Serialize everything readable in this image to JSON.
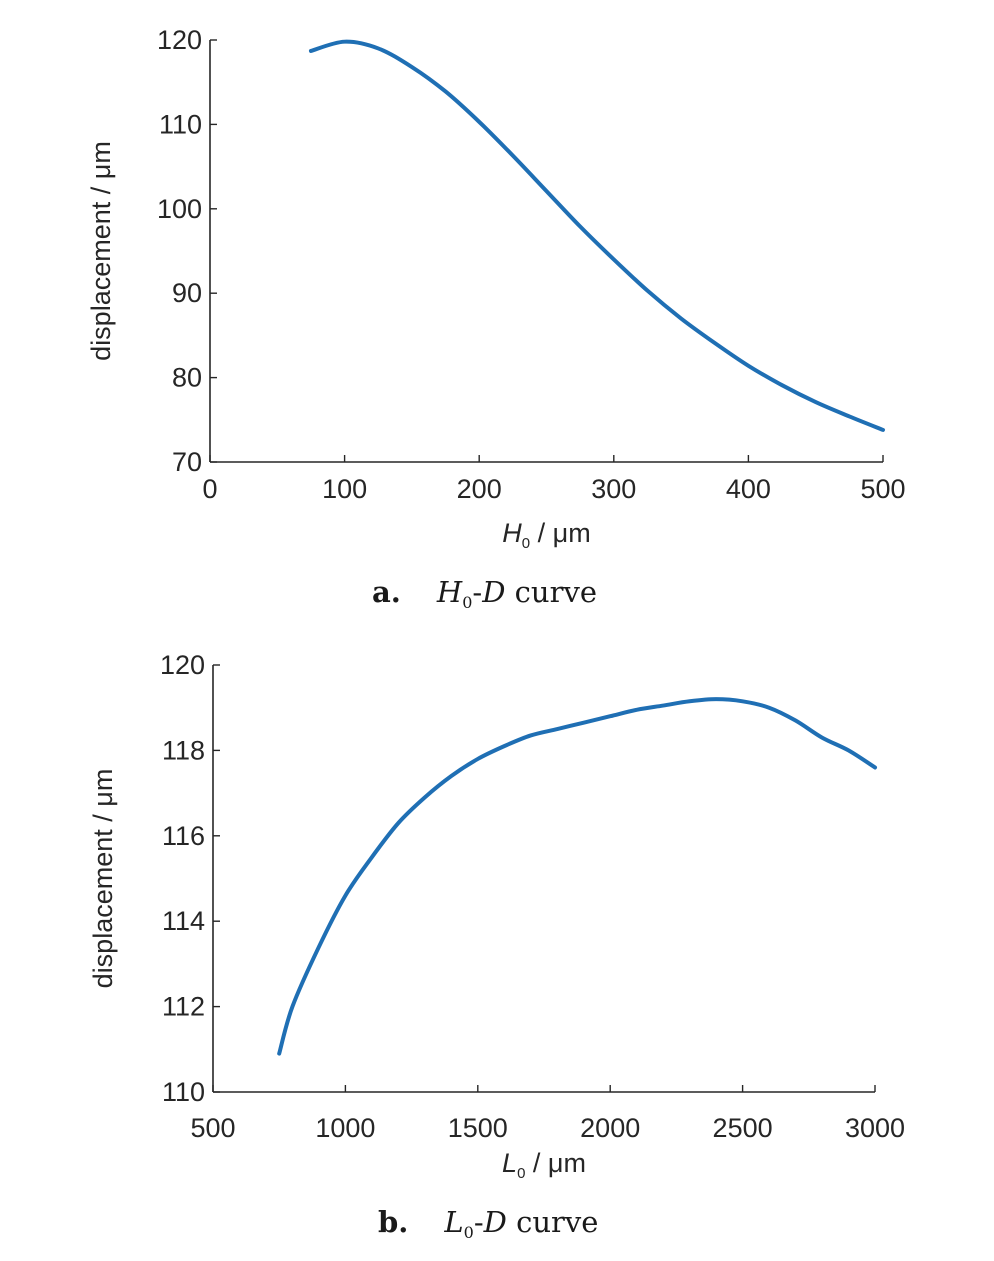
{
  "chart_data": [
    {
      "type": "line",
      "caption_letter": "a.",
      "caption_var": "H",
      "caption_sub": "0",
      "caption_rest": "-D curve",
      "xlabel_var": "H",
      "xlabel_sub": "0",
      "xlabel_unit": " / μm",
      "ylabel": "displacement / μm",
      "xlim": [
        0,
        500
      ],
      "ylim": [
        70,
        120
      ],
      "xticks": [
        "0",
        "100",
        "200",
        "300",
        "400",
        "500"
      ],
      "yticks": [
        "70",
        "80",
        "90",
        "100",
        "110",
        "120"
      ],
      "grid": false,
      "color": "#1f6fb4",
      "x": [
        75,
        100,
        125,
        150,
        175,
        200,
        225,
        250,
        275,
        300,
        325,
        350,
        375,
        400,
        425,
        450,
        475,
        500
      ],
      "y": [
        118.7,
        119.8,
        119.0,
        116.8,
        113.9,
        110.3,
        106.3,
        102.1,
        97.9,
        94.0,
        90.3,
        87.0,
        84.1,
        81.4,
        79.1,
        77.1,
        75.4,
        73.8
      ]
    },
    {
      "type": "line",
      "caption_letter": "b.",
      "caption_var": "L",
      "caption_sub": "0",
      "caption_rest": "-D curve",
      "xlabel_var": "L",
      "xlabel_sub": "0",
      "xlabel_unit": " / μm",
      "ylabel": "displacement / μm",
      "xlim": [
        500,
        3000
      ],
      "ylim": [
        110,
        120
      ],
      "xticks": [
        "500",
        "1000",
        "1500",
        "2000",
        "2500",
        "3000"
      ],
      "yticks": [
        "110",
        "112",
        "114",
        "116",
        "118",
        "120"
      ],
      "grid": false,
      "color": "#1f6fb4",
      "x": [
        750,
        800,
        900,
        1000,
        1100,
        1200,
        1300,
        1400,
        1500,
        1600,
        1700,
        1800,
        1900,
        2000,
        2100,
        2200,
        2300,
        2400,
        2500,
        2600,
        2700,
        2800,
        2900,
        3000
      ],
      "y": [
        110.9,
        112.0,
        113.4,
        114.6,
        115.5,
        116.3,
        116.9,
        117.4,
        117.8,
        118.1,
        118.35,
        118.5,
        118.65,
        118.8,
        118.95,
        119.05,
        119.15,
        119.2,
        119.15,
        119.0,
        118.7,
        118.3,
        118.0,
        117.6
      ]
    }
  ]
}
